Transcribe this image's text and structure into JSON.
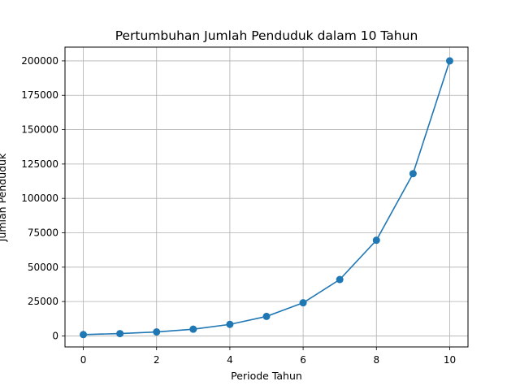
{
  "chart_data": {
    "type": "line",
    "title": "Pertumbuhan Jumlah Penduduk dalam 10 Tahun",
    "xlabel": "Periode Tahun",
    "ylabel": "Jumlah Penduduk",
    "xlim": [
      -0.5,
      10.5
    ],
    "ylim": [
      -8000,
      210000
    ],
    "xticks": [
      0,
      2,
      4,
      6,
      8,
      10
    ],
    "yticks": [
      0,
      25000,
      50000,
      75000,
      100000,
      125000,
      150000,
      175000,
      200000
    ],
    "grid": true,
    "marker": "circle",
    "series_color": "#1f77b4",
    "series": [
      {
        "x": [
          0,
          1,
          2,
          3,
          4,
          5,
          6,
          7,
          8,
          9,
          10
        ],
        "values": [
          1000,
          1700,
          2900,
          4900,
          8400,
          14200,
          24100,
          41000,
          69600,
          118000,
          200000
        ]
      }
    ]
  }
}
